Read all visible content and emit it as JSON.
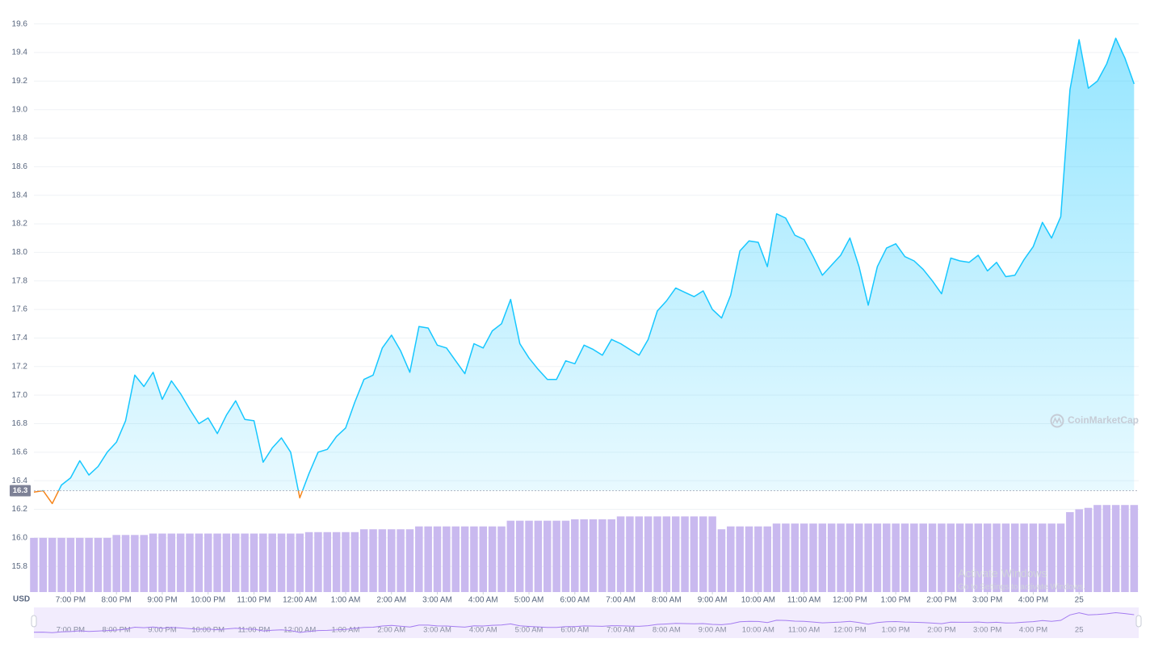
{
  "chart_data": {
    "type": "line",
    "currency": "USD",
    "watermark": "CoinMarketCap",
    "overlay_title": "Activate Windows",
    "overlay_text": "Go to Settings to activate Windows.",
    "color": "#16c7ff",
    "below_color": "#f6851b",
    "grid": true,
    "xlim": [
      18.2,
      42.3
    ],
    "ylim": [
      15.62,
      19.7
    ],
    "xticks": [
      {
        "value": 19,
        "label": "7:00 PM"
      },
      {
        "value": 20,
        "label": "8:00 PM"
      },
      {
        "value": 21,
        "label": "9:00 PM"
      },
      {
        "value": 22,
        "label": "10:00 PM"
      },
      {
        "value": 23,
        "label": "11:00 PM"
      },
      {
        "value": 24,
        "label": "12:00 AM"
      },
      {
        "value": 25,
        "label": "1:00 AM"
      },
      {
        "value": 26,
        "label": "2:00 AM"
      },
      {
        "value": 27,
        "label": "3:00 AM"
      },
      {
        "value": 28,
        "label": "4:00 AM"
      },
      {
        "value": 29,
        "label": "5:00 AM"
      },
      {
        "value": 30,
        "label": "6:00 AM"
      },
      {
        "value": 31,
        "label": "7:00 AM"
      },
      {
        "value": 32,
        "label": "8:00 AM"
      },
      {
        "value": 33,
        "label": "9:00 AM"
      },
      {
        "value": 34,
        "label": "10:00 AM"
      },
      {
        "value": 35,
        "label": "11:00 AM"
      },
      {
        "value": 36,
        "label": "12:00 PM"
      },
      {
        "value": 37,
        "label": "1:00 PM"
      },
      {
        "value": 38,
        "label": "2:00 PM"
      },
      {
        "value": 39,
        "label": "3:00 PM"
      },
      {
        "value": 40,
        "label": "4:00 PM"
      },
      {
        "value": 41,
        "label": "25"
      }
    ],
    "yticks": [
      15.8,
      {
        "value": 16,
        "label": "16.0"
      },
      16.2,
      16.4,
      16.6,
      16.8,
      {
        "value": 17,
        "label": "17.0"
      },
      17.2,
      17.4,
      17.6,
      17.8,
      {
        "value": 18,
        "label": "18.0"
      },
      18.2,
      18.4,
      18.6,
      18.8,
      {
        "value": 19,
        "label": "19.0"
      },
      19.2,
      19.4,
      19.6
    ],
    "reference_line": {
      "value": 16.33,
      "label": "16.3"
    },
    "x": [
      18.2,
      18.4,
      18.6,
      18.8,
      19,
      19.2,
      19.4,
      19.6,
      19.8,
      20,
      20.2,
      20.4,
      20.6,
      20.8,
      21,
      21.2,
      21.4,
      21.6,
      21.8,
      22,
      22.2,
      22.4,
      22.6,
      22.8,
      23,
      23.2,
      23.4,
      23.6,
      23.8,
      24,
      24.2,
      24.4,
      24.6,
      24.8,
      25,
      25.2,
      25.4,
      25.6,
      25.8,
      26,
      26.2,
      26.4,
      26.6,
      26.8,
      27,
      27.2,
      27.4,
      27.6,
      27.8,
      28,
      28.2,
      28.4,
      28.6,
      28.8,
      29,
      29.2,
      29.4,
      29.6,
      29.8,
      30,
      30.2,
      30.4,
      30.6,
      30.8,
      31,
      31.2,
      31.4,
      31.6,
      31.8,
      32,
      32.2,
      32.4,
      32.6,
      32.8,
      33,
      33.2,
      33.4,
      33.6,
      33.8,
      34,
      34.2,
      34.4,
      34.6,
      34.8,
      35,
      35.2,
      35.4,
      35.6,
      35.8,
      36,
      36.2,
      36.4,
      36.6,
      36.8,
      37,
      37.2,
      37.4,
      37.6,
      37.8,
      38,
      38.2,
      38.4,
      38.6,
      38.8,
      39,
      39.2,
      39.4,
      39.6,
      39.8,
      40,
      40.2,
      40.4,
      40.6,
      40.8,
      41,
      41.2,
      41.4,
      41.6,
      41.8,
      42,
      42.2
    ],
    "values": [
      16.32,
      16.33,
      16.24,
      16.37,
      16.42,
      16.54,
      16.44,
      16.5,
      16.6,
      16.67,
      16.82,
      17.14,
      17.06,
      17.16,
      16.97,
      17.1,
      17.01,
      16.9,
      16.8,
      16.84,
      16.73,
      16.86,
      16.96,
      16.83,
      16.82,
      16.53,
      16.63,
      16.7,
      16.6,
      16.28,
      16.45,
      16.6,
      16.62,
      16.71,
      16.77,
      16.95,
      17.11,
      17.14,
      17.33,
      17.42,
      17.31,
      17.16,
      17.48,
      17.47,
      17.35,
      17.33,
      17.24,
      17.15,
      17.36,
      17.33,
      17.45,
      17.5,
      17.67,
      17.36,
      17.26,
      17.18,
      17.11,
      17.11,
      17.24,
      17.22,
      17.35,
      17.32,
      17.28,
      17.39,
      17.36,
      17.32,
      17.28,
      17.39,
      17.59,
      17.66,
      17.75,
      17.72,
      17.69,
      17.73,
      17.6,
      17.54,
      17.7,
      18.01,
      18.08,
      18.07,
      17.9,
      18.27,
      18.24,
      18.12,
      18.09,
      17.97,
      17.84,
      17.91,
      17.98,
      18.1,
      17.9,
      17.63,
      17.9,
      18.03,
      18.06,
      17.97,
      17.94,
      17.88,
      17.8,
      17.71,
      17.96,
      17.94,
      17.93,
      17.98,
      17.87,
      17.93,
      17.83,
      17.84,
      17.95,
      18.04,
      18.21,
      18.1,
      18.25,
      19.14,
      19.49,
      19.15,
      19.2,
      19.32,
      19.5,
      19.36,
      19.18
    ],
    "volume": {
      "color": "#c9b9ef",
      "values": [
        16,
        16,
        16,
        16,
        16,
        16,
        16,
        16,
        16,
        16.02,
        16.02,
        16.02,
        16.02,
        16.03,
        16.03,
        16.03,
        16.03,
        16.03,
        16.03,
        16.03,
        16.03,
        16.03,
        16.03,
        16.03,
        16.03,
        16.03,
        16.03,
        16.03,
        16.03,
        16.03,
        16.04,
        16.04,
        16.04,
        16.04,
        16.04,
        16.04,
        16.06,
        16.06,
        16.06,
        16.06,
        16.06,
        16.06,
        16.08,
        16.08,
        16.08,
        16.08,
        16.08,
        16.08,
        16.08,
        16.08,
        16.08,
        16.08,
        16.12,
        16.12,
        16.12,
        16.12,
        16.12,
        16.12,
        16.12,
        16.13,
        16.13,
        16.13,
        16.13,
        16.13,
        16.15,
        16.15,
        16.15,
        16.15,
        16.15,
        16.15,
        16.15,
        16.15,
        16.15,
        16.15,
        16.15,
        16.06,
        16.08,
        16.08,
        16.08,
        16.08,
        16.08,
        16.1,
        16.1,
        16.1,
        16.1,
        16.1,
        16.1,
        16.1,
        16.1,
        16.1,
        16.1,
        16.1,
        16.1,
        16.1,
        16.1,
        16.1,
        16.1,
        16.1,
        16.1,
        16.1,
        16.1,
        16.1,
        16.1,
        16.1,
        16.1,
        16.1,
        16.1,
        16.1,
        16.1,
        16.1,
        16.1,
        16.1,
        16.1,
        16.18,
        16.2,
        16.21,
        16.23,
        16.23,
        16.23,
        16.23,
        16.23
      ]
    }
  }
}
